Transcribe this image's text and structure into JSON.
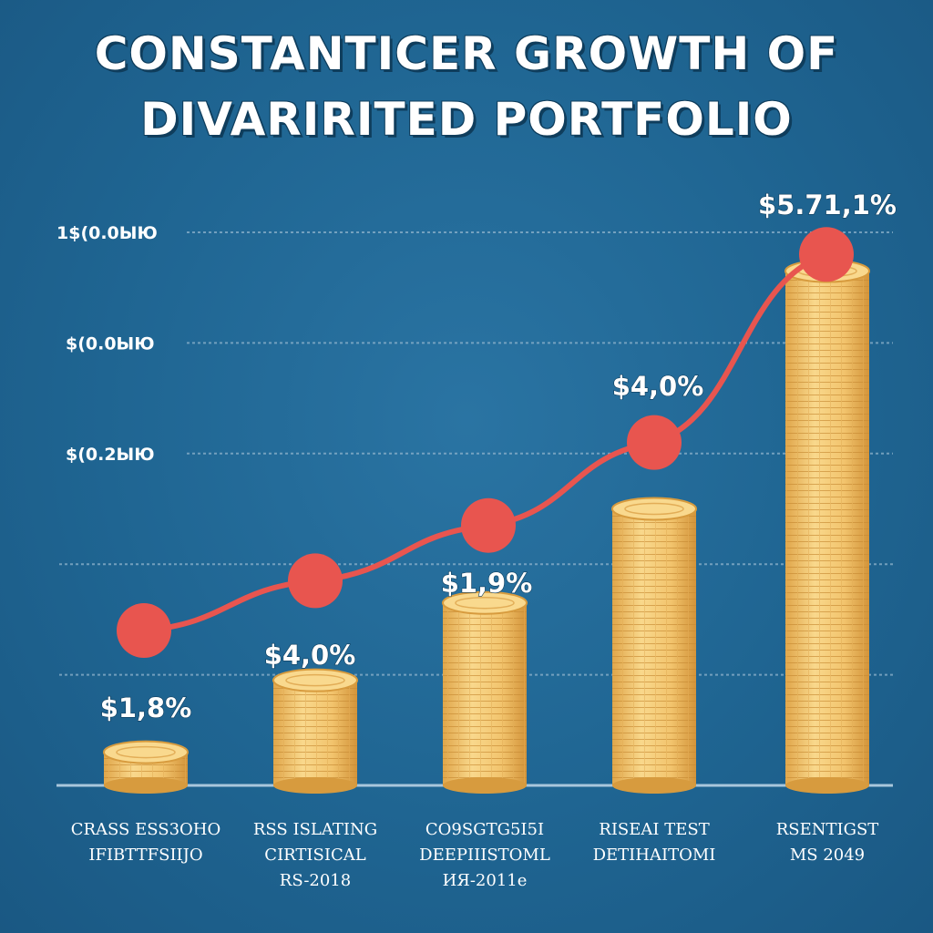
{
  "title": {
    "line1": "CONSTANTICER GROWTH OF",
    "line2": "DIVARIRITED PORTFOLIO"
  },
  "colors": {
    "background": "#1f6592",
    "line": "#e8554f",
    "coin": "#f2c46d",
    "coin_dark": "#d79b3e",
    "grid": "#8fb3cc",
    "text": "#ffffff"
  },
  "chart_data": {
    "type": "bar",
    "title": "CONSTANTICER GROWTH OF DIVARIRITED PORTFOLIO",
    "xlabel": "",
    "ylabel": "",
    "ylim": [
      0,
      100
    ],
    "grid": true,
    "y_tick_labels": [
      {
        "value": 100,
        "label": "1$(0.0ЫЮ"
      },
      {
        "value": 80,
        "label": "$(0.0ЫЮ"
      },
      {
        "value": 60,
        "label": "$(0.2ЫЮ"
      }
    ],
    "grid_values": [
      100,
      80,
      60,
      40,
      20
    ],
    "categories": [
      [
        "CRASS ESS3OHO",
        "IFIBTTFSIIJO"
      ],
      [
        "RSS ISLATING",
        "CIRTISICAL",
        "RS-2018"
      ],
      [
        "CO9SGTG5I5I",
        "DEEPIIISTOML",
        "ИЯ-2011e"
      ],
      [
        "RISEAI TEST",
        "DETIHAITOMI"
      ],
      [
        "RSENTIGST",
        "MS 2049"
      ]
    ],
    "series": [
      {
        "name": "coin stack",
        "type": "bar",
        "values": [
          6,
          19,
          33,
          50,
          93
        ]
      },
      {
        "name": "growth line",
        "type": "line",
        "values": [
          28,
          37,
          47,
          62,
          96
        ]
      }
    ],
    "data_labels": [
      "$1,8%",
      "$4,0%",
      "$1,9%",
      "$4,0%",
      "$5.71,1%"
    ]
  }
}
